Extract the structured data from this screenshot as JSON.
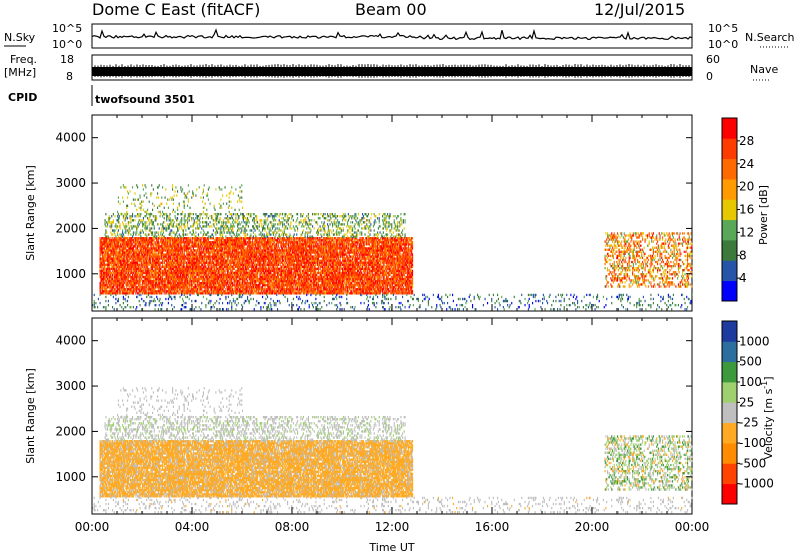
{
  "header": {
    "station": "Dome C East (fitACF)",
    "beam": "Beam 00",
    "date": "12/Jul/2015"
  },
  "noise_panel": {
    "left_label": "N.Sky",
    "right_label": "N.Search",
    "left_ticks": [
      "10^5",
      "10^0"
    ],
    "right_ticks": [
      "10^5",
      "10^0"
    ]
  },
  "freq_panel": {
    "left_label_1": "Freq.",
    "left_label_2": "[MHz]",
    "right_label": "Nave",
    "left_ticks": [
      "18",
      "8"
    ],
    "right_ticks": [
      "60",
      "0"
    ]
  },
  "cpid_panel": {
    "label": "CPID",
    "value": "twofsound 3501"
  },
  "colors": {
    "power_scale": [
      "#0000ff",
      "#2554a8",
      "#3c7a3c",
      "#58a858",
      "#e6c800",
      "#ff9a00",
      "#ff6a00",
      "#ff3c00",
      "#ff0000"
    ],
    "velocity_scale": [
      "#ff0000",
      "#ff4400",
      "#ff8c00",
      "#ffaa22",
      "#bfbfbf",
      "#9fd070",
      "#3c9a3c",
      "#2c6f9f",
      "#1d3a9f"
    ]
  },
  "chart_data": [
    {
      "type": "heatmap",
      "name": "power",
      "ylabel": "Slant Range [km]",
      "xlabel": "",
      "yticks": [
        "1000",
        "2000",
        "3000",
        "4000"
      ],
      "ylim": [
        180,
        4500
      ],
      "xlim_hours": [
        0,
        24
      ],
      "colorbar_label": "Power [dB]",
      "colorbar_ticks": [
        "4",
        "8",
        "12",
        "16",
        "20",
        "24",
        "28"
      ],
      "colorbar_range": [
        0,
        32
      ],
      "regions": [
        {
          "t_start": 0.3,
          "t_end": 12.8,
          "r_min": 550,
          "r_max": 1800,
          "value_range": [
            20,
            32
          ],
          "density": 0.85
        },
        {
          "t_start": 0.5,
          "t_end": 12.5,
          "r_min": 1800,
          "r_max": 2300,
          "value_range": [
            6,
            18
          ],
          "density": 0.3
        },
        {
          "t_start": 1.0,
          "t_end": 6.0,
          "r_min": 2300,
          "r_max": 2950,
          "value_range": [
            8,
            18
          ],
          "density": 0.08
        },
        {
          "t_start": 20.5,
          "t_end": 24.0,
          "r_min": 700,
          "r_max": 1900,
          "value_range": [
            12,
            30
          ],
          "density": 0.35
        },
        {
          "t_start": 0.0,
          "t_end": 24.0,
          "r_min": 200,
          "r_max": 550,
          "value_range": [
            2,
            12
          ],
          "density": 0.12
        }
      ]
    },
    {
      "type": "heatmap",
      "name": "velocity",
      "ylabel": "Slant Range [km]",
      "xlabel": "Time UT",
      "yticks": [
        "1000",
        "2000",
        "3000",
        "4000"
      ],
      "ylim": [
        180,
        4500
      ],
      "xlim_hours": [
        0,
        24
      ],
      "xticks": [
        "00:00",
        "04:00",
        "08:00",
        "12:00",
        "16:00",
        "20:00",
        "00:00"
      ],
      "colorbar_label": "Velocity [m s^-1]",
      "colorbar_ticks": [
        "-1000",
        "-500",
        "-100",
        "-25",
        "25",
        "100",
        "500",
        "1000"
      ],
      "colorbar_range": [
        -1200,
        1200
      ],
      "regions": [
        {
          "t_start": 0.3,
          "t_end": 12.8,
          "r_min": 550,
          "r_max": 1800,
          "value_range": [
            -400,
            -60
          ],
          "density": 0.85
        },
        {
          "t_start": 0.5,
          "t_end": 12.5,
          "r_min": 1800,
          "r_max": 2300,
          "value_range": [
            -40,
            200
          ],
          "density": 0.3
        },
        {
          "t_start": 1.0,
          "t_end": 6.0,
          "r_min": 2300,
          "r_max": 2950,
          "value_range": [
            -30,
            40
          ],
          "density": 0.08
        },
        {
          "t_start": 20.5,
          "t_end": 24.0,
          "r_min": 700,
          "r_max": 1900,
          "value_range": [
            -300,
            600
          ],
          "density": 0.35
        },
        {
          "t_start": 0.0,
          "t_end": 24.0,
          "r_min": 200,
          "r_max": 550,
          "value_range": [
            -150,
            80
          ],
          "density": 0.12
        }
      ]
    }
  ]
}
